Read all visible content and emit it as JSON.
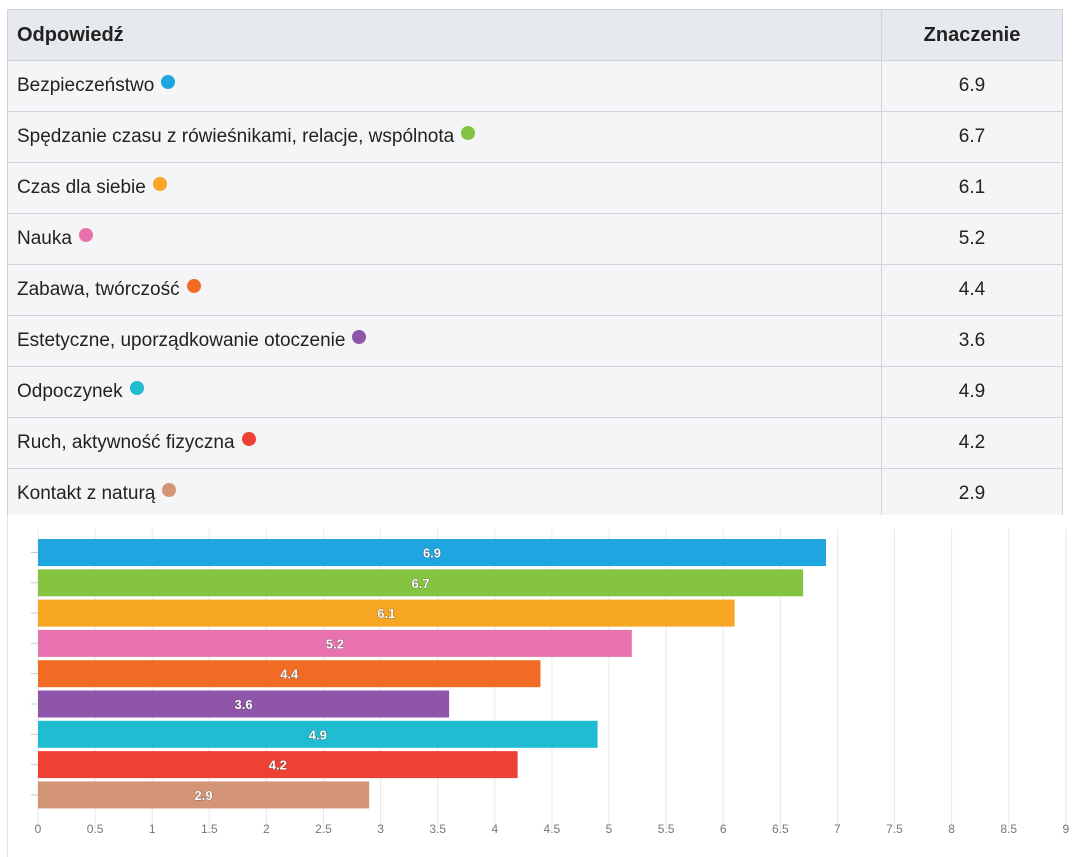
{
  "table": {
    "headers": {
      "answer": "Odpowiedź",
      "value": "Znaczenie"
    },
    "rows": [
      {
        "label": "Bezpieczeństwo",
        "value": "6.9",
        "color": "#1fa5e0"
      },
      {
        "label": "Spędzanie czasu z rówieśnikami, relacje, wspólnota",
        "value": "6.7",
        "color": "#84c441"
      },
      {
        "label": "Czas dla siebie",
        "value": "6.1",
        "color": "#f6a623"
      },
      {
        "label": "Nauka",
        "value": "5.2",
        "color": "#e872ad"
      },
      {
        "label": "Zabawa, twórczość",
        "value": "4.4",
        "color": "#f26b24"
      },
      {
        "label": "Estetyczne, uporządkowanie otoczenie",
        "value": "3.6",
        "color": "#8e55a8"
      },
      {
        "label": "Odpoczynek",
        "value": "4.9",
        "color": "#1fbcd2"
      },
      {
        "label": "Ruch, aktywność fizyczna",
        "value": "4.2",
        "color": "#ee4136"
      },
      {
        "label": "Kontakt z naturą",
        "value": "2.9",
        "color": "#d49577"
      }
    ]
  },
  "chart_data": {
    "type": "bar",
    "orientation": "horizontal",
    "categories": [
      "Bezpieczeństwo",
      "Spędzanie czasu z rówieśnikami, relacje, wspólnota",
      "Czas dla siebie",
      "Nauka",
      "Zabawa, twórczość",
      "Estetyczne, uporządkowanie otoczenie",
      "Odpoczynek",
      "Ruch, aktywność fizyczna",
      "Kontakt z naturą"
    ],
    "values": [
      6.9,
      6.7,
      6.1,
      5.2,
      4.4,
      3.6,
      4.9,
      4.2,
      2.9
    ],
    "colors": [
      "#1fa5e0",
      "#84c441",
      "#f6a623",
      "#e872ad",
      "#f26b24",
      "#8e55a8",
      "#1fbcd2",
      "#ee4136",
      "#d49577"
    ],
    "xlim": [
      0,
      9
    ],
    "xticks": [
      "0",
      "0.5",
      "1",
      "1.5",
      "2",
      "2.5",
      "3",
      "3.5",
      "4",
      "4.5",
      "5",
      "5.5",
      "6",
      "6.5",
      "7",
      "7.5",
      "8",
      "8.5",
      "9"
    ],
    "data_labels": [
      "6.9",
      "6.7",
      "6.1",
      "5.2",
      "4.4",
      "3.6",
      "4.9",
      "4.2",
      "2.9"
    ],
    "grid": true,
    "title": "",
    "xlabel": "",
    "ylabel": ""
  }
}
